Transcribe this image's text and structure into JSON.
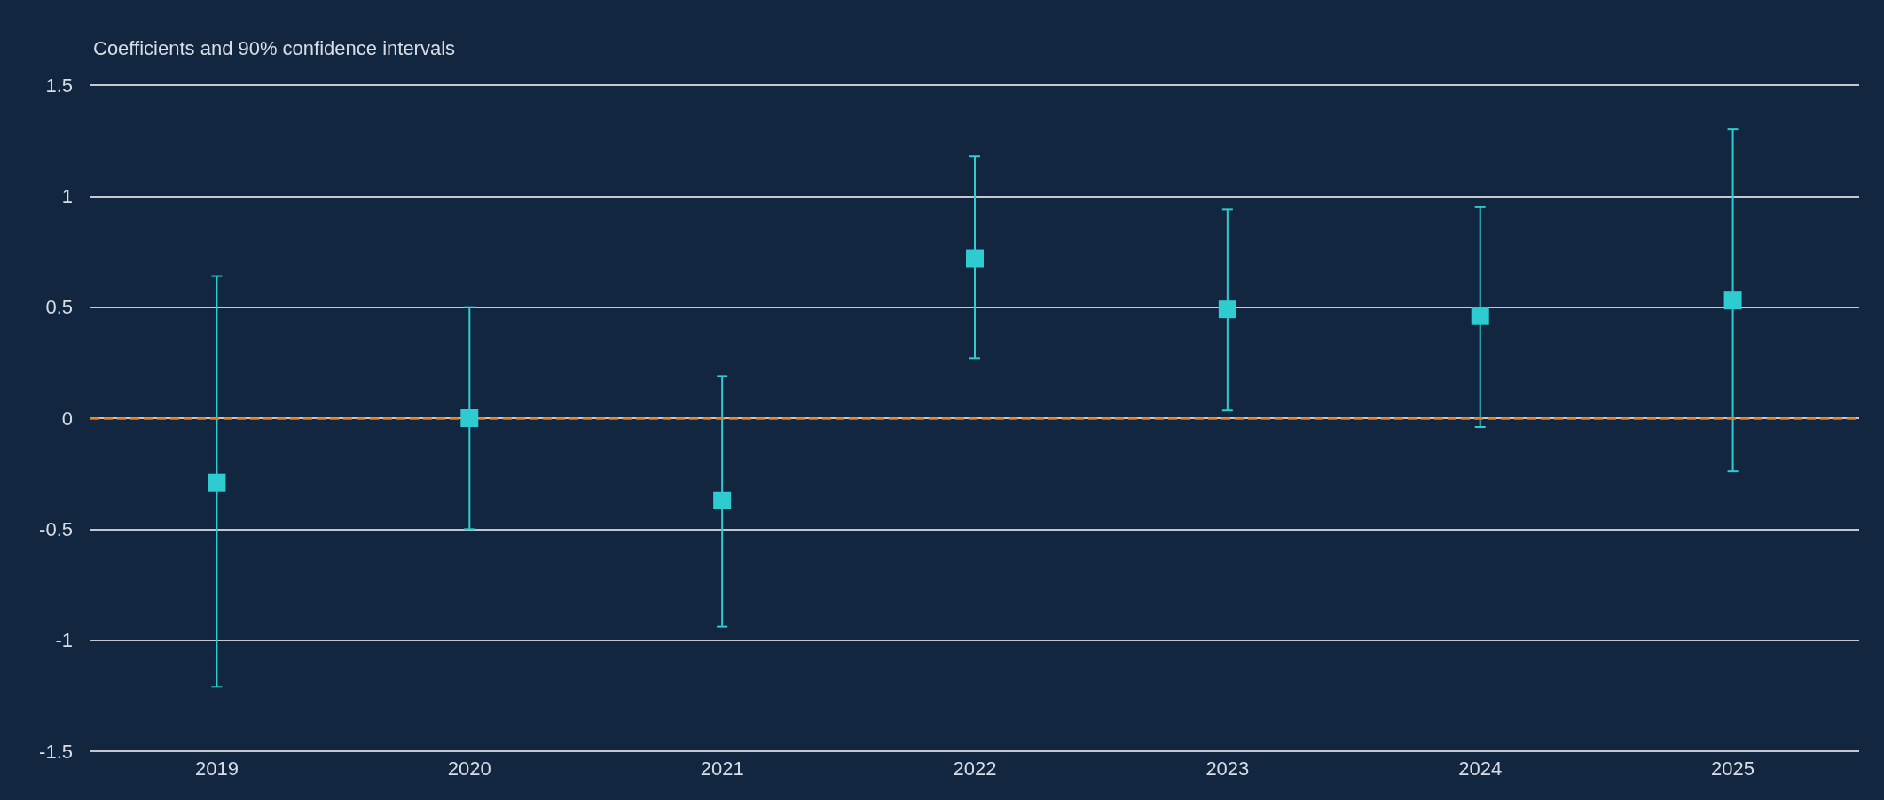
{
  "chart_data": {
    "type": "scatter",
    "title": "Coefficients and 90% confidence intervals",
    "categories": [
      "2019",
      "2020",
      "2021",
      "2022",
      "2023",
      "2024",
      "2025"
    ],
    "series": [
      {
        "color": "#2ecbd0",
        "values": [
          -0.29,
          0.0,
          -0.37,
          0.72,
          0.49,
          0.46,
          0.53
        ],
        "errors": [
          [
            -1.21,
            0.64
          ],
          [
            -0.5,
            0.5
          ],
          [
            -0.94,
            0.19
          ],
          [
            0.27,
            1.18
          ],
          [
            0.035,
            0.94
          ],
          [
            -0.04,
            0.95
          ],
          [
            -0.24,
            1.3
          ]
        ]
      }
    ],
    "ylim": [
      -1.5,
      1.5
    ],
    "yticks": [
      1.5,
      1,
      0.5,
      0,
      -0.5,
      -1,
      -1.5
    ],
    "ref_lines": [
      {
        "axis": "y",
        "value": 0,
        "color": "#e87d1e",
        "line_style": "dashed"
      }
    ],
    "grid": "y",
    "marker": "square"
  }
}
